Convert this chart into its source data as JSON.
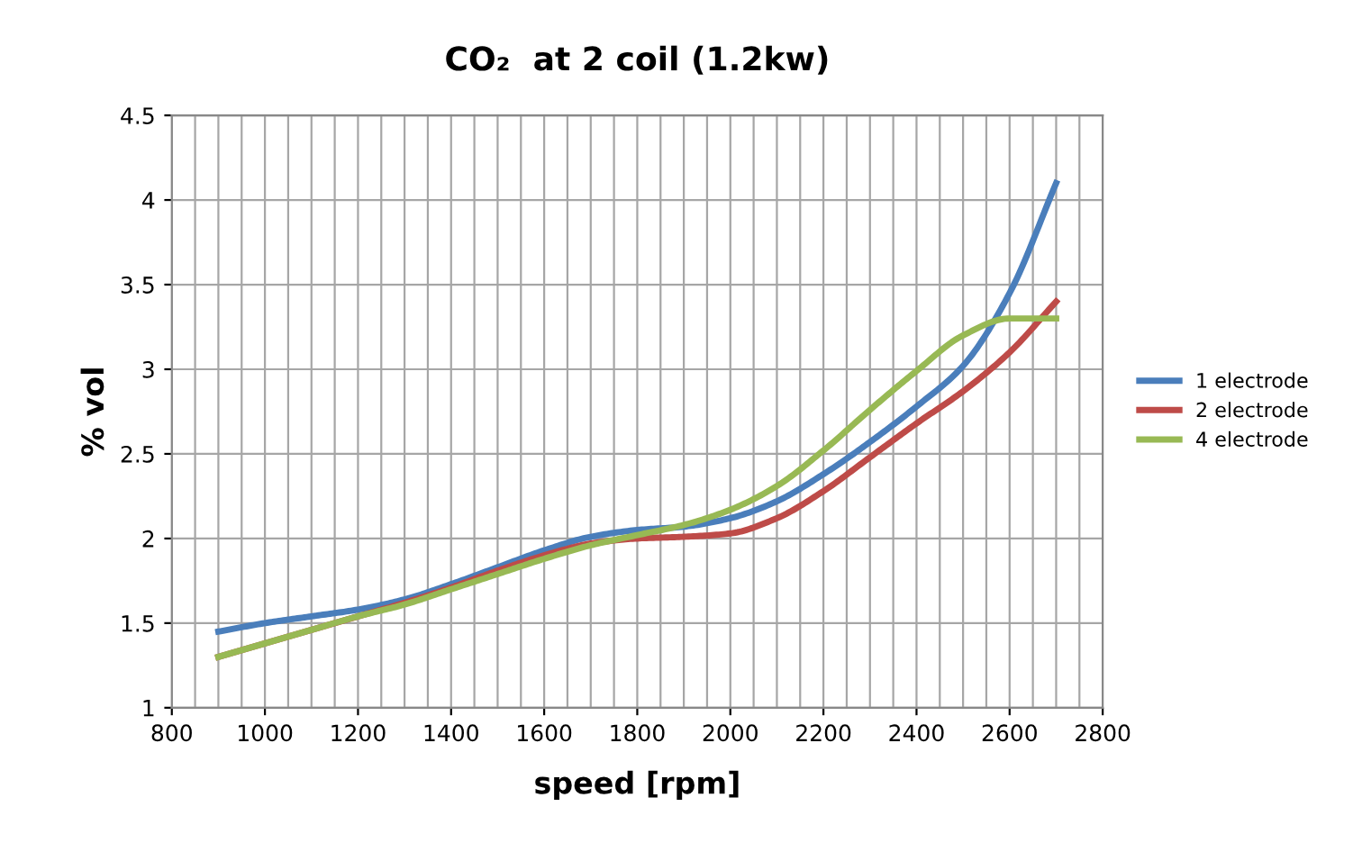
{
  "chart_data": {
    "type": "line",
    "title": "CO₂  at 2 coil (1.2kw)",
    "xlabel": "speed [rpm]",
    "ylabel": "% vol",
    "x": [
      900,
      1000,
      1100,
      1200,
      1300,
      1400,
      1500,
      1600,
      1700,
      1800,
      1900,
      2000,
      2100,
      2200,
      2300,
      2400,
      2500,
      2600,
      2700
    ],
    "series": [
      {
        "name": "1 electrode",
        "color": "#4a7ebb",
        "values": [
          1.45,
          1.5,
          1.54,
          1.58,
          1.64,
          1.73,
          1.83,
          1.93,
          2.01,
          2.05,
          2.07,
          2.12,
          2.22,
          2.38,
          2.57,
          2.78,
          3.02,
          3.45,
          4.1
        ]
      },
      {
        "name": "2 electrode",
        "color": "#be4b48",
        "values": [
          1.3,
          1.38,
          1.46,
          1.54,
          1.62,
          1.71,
          1.81,
          1.9,
          1.97,
          2.0,
          2.01,
          2.03,
          2.12,
          2.28,
          2.48,
          2.68,
          2.87,
          3.1,
          3.4
        ]
      },
      {
        "name": "4 electrode",
        "color": "#98b954",
        "values": [
          1.3,
          1.38,
          1.46,
          1.54,
          1.61,
          1.7,
          1.79,
          1.88,
          1.96,
          2.02,
          2.08,
          2.17,
          2.31,
          2.52,
          2.76,
          2.99,
          3.2,
          3.3,
          3.3
        ]
      }
    ],
    "xlim": [
      800,
      2800
    ],
    "xticks": [
      800,
      1000,
      1200,
      1400,
      1600,
      1800,
      2000,
      2200,
      2400,
      2600,
      2800
    ],
    "ylim": [
      1,
      4.5
    ],
    "yticks": [
      1,
      1.5,
      2,
      2.5,
      3,
      3.5,
      4,
      4.5
    ],
    "grid": true,
    "legend": "right",
    "marker": "none",
    "line_style": "solid"
  }
}
